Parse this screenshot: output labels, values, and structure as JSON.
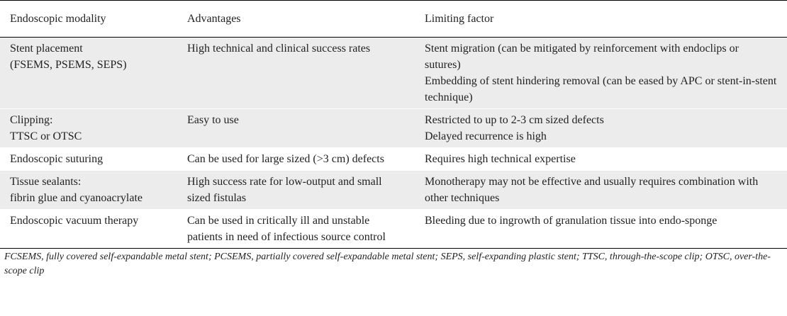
{
  "table": {
    "headers": [
      "Endoscopic modality",
      "Advantages",
      "Limiting factor"
    ],
    "rows": [
      {
        "modality": [
          "Stent placement",
          "(FSEMS, PSEMS, SEPS)"
        ],
        "advantages": [
          "High technical and clinical success rates"
        ],
        "limiting": [
          "Stent migration (can be mitigated by reinforcement with endoclips or sutures)",
          "Embedding of stent hindering removal (can be eased by APC or stent-in-stent technique)"
        ]
      },
      {
        "modality": [
          "Clipping:",
          "TTSC or OTSC"
        ],
        "advantages": [
          "Easy to use"
        ],
        "limiting": [
          "Restricted to up to 2-3 cm sized defects",
          "Delayed recurrence is high"
        ]
      },
      {
        "modality": [
          "Endoscopic suturing"
        ],
        "advantages": [
          "Can be used for large sized (>3 cm) defects"
        ],
        "limiting": [
          "Requires high technical expertise"
        ]
      },
      {
        "modality": [
          "Tissue sealants:",
          "fibrin glue and cyanoacrylate"
        ],
        "advantages": [
          "High success rate for low-output and small sized fistulas"
        ],
        "limiting": [
          "Monotherapy may not be effective and usually requires combination with other techniques"
        ]
      },
      {
        "modality": [
          "Endoscopic vacuum therapy"
        ],
        "advantages": [
          "Can be used in critically ill and unstable patients in need of infectious source control"
        ],
        "limiting": [
          "Bleeding due to ingrowth of granulation tissue into endo-sponge"
        ]
      }
    ]
  },
  "footnote": "FCSEMS, fully covered self-expandable metal stent; PCSEMS, partially covered self-expandable metal stent; SEPS, self-expanding plastic stent; TTSC, through-the-scope clip; OTSC, over-the-scope clip"
}
